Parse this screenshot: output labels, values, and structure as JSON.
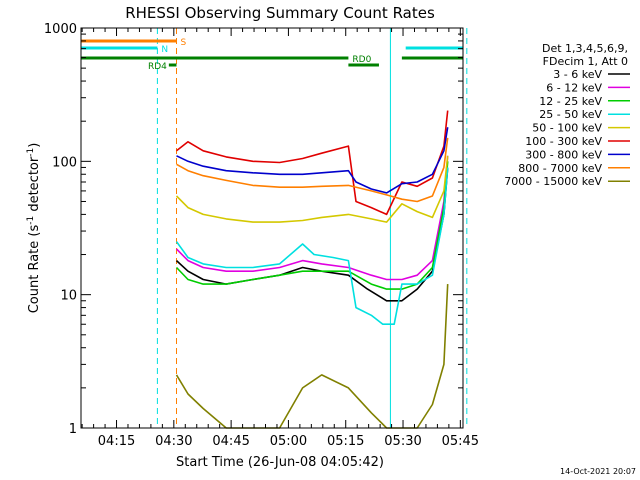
{
  "chart_data": {
    "type": "line",
    "title": "RHESSI Observing Summary Count Rates",
    "xlabel": "Start Time (26-Jun-08 04:05:42)",
    "ylabel_main": "Count Rate (s",
    "ylabel_sup1": "-1",
    "ylabel_mid": " detector",
    "ylabel_sup2": "-1",
    "ylabel_end": ")",
    "yscale": "log",
    "ylim": [
      1,
      1000
    ],
    "xlim_minutes": [
      0,
      100
    ],
    "x_ticks": [
      {
        "label": "04:15",
        "t": 9.3
      },
      {
        "label": "04:30",
        "t": 24.3
      },
      {
        "label": "04:45",
        "t": 39.3
      },
      {
        "label": "05:00",
        "t": 54.3
      },
      {
        "label": "05:15",
        "t": 69.3
      },
      {
        "label": "05:30",
        "t": 84.3
      },
      {
        "label": "05:45",
        "t": 99.3
      }
    ],
    "y_ticks": [
      {
        "label": "1",
        "v": 1
      },
      {
        "label": "10",
        "v": 10
      },
      {
        "label": "100",
        "v": 100
      },
      {
        "label": "1000",
        "v": 1000
      }
    ],
    "legend": {
      "header1": "Det 1,3,4,5,6,9,",
      "header2": "FDecim 1, Att 0",
      "placement": "right"
    },
    "series": [
      {
        "name": "3 - 6 keV",
        "color": "#000000",
        "points": [
          [
            25,
            18
          ],
          [
            28,
            15
          ],
          [
            32,
            13
          ],
          [
            38,
            12
          ],
          [
            45,
            13
          ],
          [
            52,
            14
          ],
          [
            58,
            16
          ],
          [
            63,
            15
          ],
          [
            70,
            14
          ],
          [
            75,
            11
          ],
          [
            80,
            9
          ],
          [
            84,
            9
          ],
          [
            88,
            11
          ],
          [
            92,
            15
          ],
          [
            95,
            40
          ],
          [
            96,
            90
          ]
        ]
      },
      {
        "name": "6 - 12 keV",
        "color": "#e000e0",
        "points": [
          [
            25,
            22
          ],
          [
            28,
            18
          ],
          [
            32,
            16
          ],
          [
            38,
            15
          ],
          [
            45,
            15
          ],
          [
            52,
            16
          ],
          [
            58,
            18
          ],
          [
            63,
            17
          ],
          [
            70,
            16
          ],
          [
            76,
            14
          ],
          [
            80,
            13
          ],
          [
            84,
            13
          ],
          [
            88,
            14
          ],
          [
            92,
            18
          ],
          [
            95,
            50
          ],
          [
            96,
            110
          ]
        ]
      },
      {
        "name": "12 - 25 keV",
        "color": "#00cc00",
        "points": [
          [
            25,
            16
          ],
          [
            28,
            13
          ],
          [
            32,
            12
          ],
          [
            38,
            12
          ],
          [
            45,
            13
          ],
          [
            52,
            14
          ],
          [
            58,
            15
          ],
          [
            63,
            15
          ],
          [
            70,
            15
          ],
          [
            76,
            12
          ],
          [
            80,
            11
          ],
          [
            84,
            11
          ],
          [
            88,
            12
          ],
          [
            92,
            16
          ],
          [
            95,
            45
          ],
          [
            96,
            100
          ]
        ]
      },
      {
        "name": "25 - 50 keV",
        "color": "#00e0e0",
        "points": [
          [
            25,
            25
          ],
          [
            28,
            19
          ],
          [
            32,
            17
          ],
          [
            38,
            16
          ],
          [
            45,
            16
          ],
          [
            52,
            17
          ],
          [
            58,
            24
          ],
          [
            61,
            20
          ],
          [
            66,
            19
          ],
          [
            70,
            18
          ],
          [
            72,
            8
          ],
          [
            76,
            7
          ],
          [
            79,
            6
          ],
          [
            82,
            6
          ],
          [
            84,
            12
          ],
          [
            88,
            12
          ],
          [
            92,
            14
          ],
          [
            95,
            40
          ],
          [
            96,
            90
          ]
        ]
      },
      {
        "name": "50 - 100 keV",
        "color": "#d4c800",
        "points": [
          [
            25,
            55
          ],
          [
            28,
            45
          ],
          [
            32,
            40
          ],
          [
            38,
            37
          ],
          [
            45,
            35
          ],
          [
            52,
            35
          ],
          [
            58,
            36
          ],
          [
            63,
            38
          ],
          [
            70,
            40
          ],
          [
            76,
            37
          ],
          [
            80,
            35
          ],
          [
            84,
            48
          ],
          [
            88,
            42
          ],
          [
            92,
            38
          ],
          [
            95,
            60
          ],
          [
            96,
            110
          ]
        ]
      },
      {
        "name": "100 - 300 keV",
        "color": "#e00000",
        "points": [
          [
            25,
            120
          ],
          [
            28,
            140
          ],
          [
            32,
            120
          ],
          [
            38,
            108
          ],
          [
            45,
            100
          ],
          [
            52,
            98
          ],
          [
            58,
            105
          ],
          [
            63,
            115
          ],
          [
            70,
            130
          ],
          [
            72,
            50
          ],
          [
            76,
            45
          ],
          [
            80,
            40
          ],
          [
            84,
            70
          ],
          [
            88,
            65
          ],
          [
            92,
            75
          ],
          [
            95,
            130
          ],
          [
            96,
            240
          ]
        ]
      },
      {
        "name": "300 - 800 keV",
        "color": "#0000cc",
        "points": [
          [
            25,
            110
          ],
          [
            28,
            100
          ],
          [
            32,
            92
          ],
          [
            38,
            85
          ],
          [
            45,
            82
          ],
          [
            52,
            80
          ],
          [
            58,
            80
          ],
          [
            63,
            82
          ],
          [
            70,
            85
          ],
          [
            72,
            70
          ],
          [
            76,
            62
          ],
          [
            80,
            58
          ],
          [
            84,
            68
          ],
          [
            88,
            70
          ],
          [
            92,
            80
          ],
          [
            95,
            120
          ],
          [
            96,
            180
          ]
        ]
      },
      {
        "name": "800 - 7000 keV",
        "color": "#ff7f00",
        "points": [
          [
            25,
            95
          ],
          [
            28,
            85
          ],
          [
            32,
            78
          ],
          [
            38,
            72
          ],
          [
            45,
            66
          ],
          [
            52,
            64
          ],
          [
            58,
            64
          ],
          [
            63,
            65
          ],
          [
            70,
            66
          ],
          [
            76,
            60
          ],
          [
            80,
            56
          ],
          [
            84,
            52
          ],
          [
            88,
            50
          ],
          [
            92,
            55
          ],
          [
            95,
            90
          ],
          [
            96,
            150
          ]
        ]
      },
      {
        "name": "7000 - 15000 keV",
        "color": "#808000",
        "points": [
          [
            25,
            2.5
          ],
          [
            28,
            1.8
          ],
          [
            32,
            1.4
          ],
          [
            38,
            1
          ],
          [
            45,
            1
          ],
          [
            52,
            1
          ],
          [
            58,
            2
          ],
          [
            63,
            2.5
          ],
          [
            70,
            2
          ],
          [
            76,
            1.3
          ],
          [
            80,
            1
          ],
          [
            84,
            1
          ],
          [
            88,
            1
          ],
          [
            92,
            1.5
          ],
          [
            95,
            3
          ],
          [
            96,
            12
          ]
        ]
      }
    ],
    "flag_bars": [
      {
        "label": "S",
        "color": "#ff7f00",
        "t0": 0,
        "t1": 25,
        "level": 1
      },
      {
        "label": "N",
        "color": "#00e0e0",
        "t0": 0,
        "t1": 20,
        "level": 2
      },
      {
        "label": "",
        "color": "#00e0e0",
        "t0": 85,
        "t1": 100,
        "level": 2
      },
      {
        "label": "RD0",
        "color": "#008000",
        "t0": 0,
        "t1": 70,
        "level": 3
      },
      {
        "label": "",
        "color": "#008000",
        "t0": 84,
        "t1": 100,
        "level": 3
      },
      {
        "label": "",
        "color": "#008000",
        "t0": 70,
        "t1": 78,
        "level": 4
      },
      {
        "label": "RD4",
        "color": "#008000",
        "t0": 23,
        "t1": 25,
        "level": 4
      }
    ],
    "vlines": [
      {
        "t": 20,
        "color": "#00e0e0",
        "dash": true
      },
      {
        "t": 25,
        "color": "#ff7f00",
        "dash": true
      },
      {
        "t": 81,
        "color": "#00e0e0",
        "dash": false
      },
      {
        "t": 101,
        "color": "#00e0e0",
        "dash": true
      }
    ]
  },
  "footer_date": "14-Oct-2021 20:07"
}
